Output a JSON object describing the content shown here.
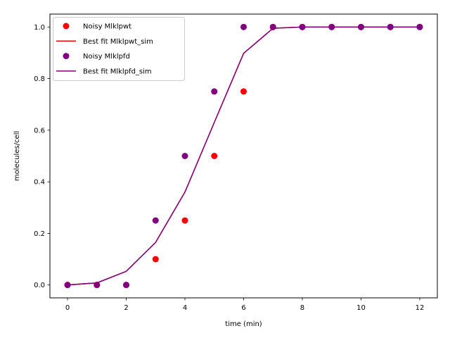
{
  "chart_data": {
    "type": "line",
    "xlabel": "time (min)",
    "ylabel": "molecules/cell",
    "xlim": [
      -0.6,
      12.6
    ],
    "ylim": [
      -0.05,
      1.05
    ],
    "xticks": [
      0,
      2,
      4,
      6,
      8,
      10,
      12
    ],
    "xtick_labels": [
      "0",
      "2",
      "4",
      "6",
      "8",
      "10",
      "12"
    ],
    "yticks": [
      0.0,
      0.2,
      0.4,
      0.6,
      0.8,
      1.0
    ],
    "ytick_labels": [
      "0.0",
      "0.2",
      "0.4",
      "0.6",
      "0.8",
      "1.0"
    ],
    "grid": false,
    "legend_position": "top-left",
    "series": [
      {
        "name": "Noisy Mlklpwt",
        "kind": "scatter",
        "color": "#ff0000",
        "x": [
          0,
          1,
          2,
          3,
          4,
          5,
          6,
          7,
          8,
          9,
          10,
          11,
          12
        ],
        "y": [
          0.0,
          0.0,
          0.0,
          0.1,
          0.25,
          0.5,
          0.75,
          1.0,
          1.0,
          1.0,
          1.0,
          1.0,
          1.0
        ]
      },
      {
        "name": "Best fit Mlklpwt_sim",
        "kind": "line",
        "color": "#ff0000",
        "x": [
          0,
          1,
          2,
          3,
          4,
          5,
          6,
          7,
          8,
          9,
          10,
          11,
          12
        ],
        "y": [
          0.0,
          0.008,
          0.053,
          0.165,
          0.36,
          0.63,
          0.898,
          0.995,
          1.0,
          1.0,
          1.0,
          1.0,
          1.0
        ]
      },
      {
        "name": "Noisy Mlklpfd",
        "kind": "scatter",
        "color": "#800080",
        "x": [
          0,
          1,
          2,
          3,
          4,
          5,
          6,
          7,
          8,
          9,
          10,
          11,
          12
        ],
        "y": [
          0.0,
          0.0,
          0.0,
          0.25,
          0.5,
          0.75,
          1.0,
          1.0,
          1.0,
          1.0,
          1.0,
          1.0,
          1.0
        ]
      },
      {
        "name": "Best fit Mlklpfd_sim",
        "kind": "line",
        "color": "#800080",
        "x": [
          0,
          1,
          2,
          3,
          4,
          5,
          6,
          7,
          8,
          9,
          10,
          11,
          12
        ],
        "y": [
          0.0,
          0.008,
          0.053,
          0.165,
          0.36,
          0.63,
          0.898,
          0.995,
          1.0,
          1.0,
          1.0,
          1.0,
          1.0
        ]
      }
    ]
  }
}
